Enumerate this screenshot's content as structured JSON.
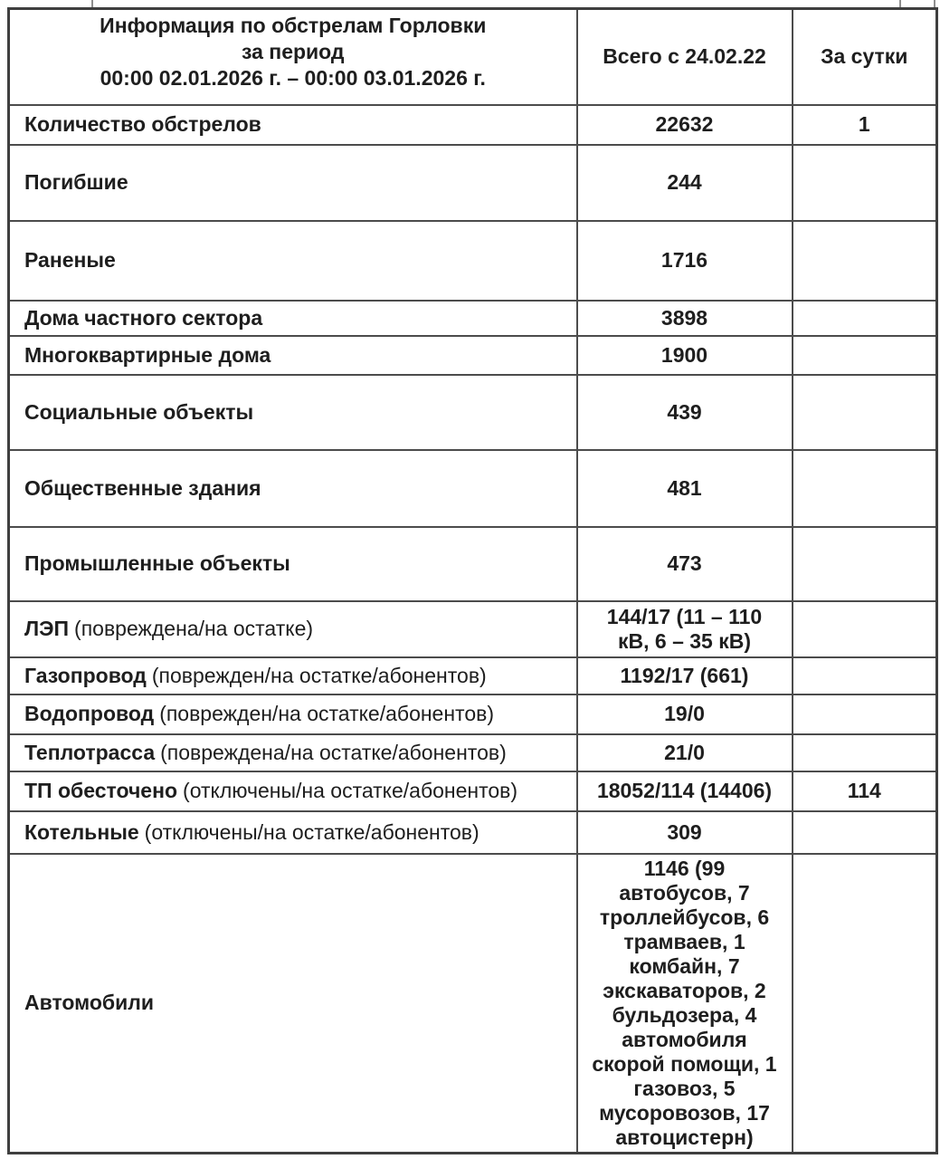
{
  "colors": {
    "background": "#ffffff",
    "border": "#4c4c4c",
    "text": "#1e1e1e"
  },
  "table": {
    "header": {
      "title": "Информация по обстрелам Горловки\nза период\n00:00 02.01.2026 г. – 00:00 03.01.2026 г.",
      "total_label": "Всего с 24.02.22",
      "daily_label": "За сутки"
    },
    "rows": [
      {
        "label": "Количество обстрелов",
        "note": "",
        "total": "22632",
        "daily": "1"
      },
      {
        "label": "Погибшие",
        "note": "",
        "total": "244",
        "daily": ""
      },
      {
        "label": "Раненые",
        "note": "",
        "total": "1716",
        "daily": ""
      },
      {
        "label": "Дома частного сектора",
        "note": "",
        "total": "3898",
        "daily": ""
      },
      {
        "label": "Многоквартирные дома",
        "note": "",
        "total": "1900",
        "daily": ""
      },
      {
        "label": "Социальные объекты",
        "note": "",
        "total": "439",
        "daily": ""
      },
      {
        "label": "Общественные здания",
        "note": "",
        "total": "481",
        "daily": ""
      },
      {
        "label": "Промышленные объекты",
        "note": "",
        "total": "473",
        "daily": ""
      },
      {
        "label": "ЛЭП",
        "note": "(повреждена/на остатке)",
        "total": "144/17 (11 – 110\nкВ, 6 – 35 кВ)",
        "daily": ""
      },
      {
        "label": "Газопровод",
        "note": "(поврежден/на остатке/абонентов)",
        "total": "1192/17 (661)",
        "daily": ""
      },
      {
        "label": "Водопровод",
        "note": "(поврежден/на остатке/абонентов)",
        "total": "19/0",
        "daily": ""
      },
      {
        "label": "Теплотрасса",
        "note": "(повреждена/на остатке/абонентов)",
        "total": "21/0",
        "daily": ""
      },
      {
        "label": "ТП обесточено",
        "note": "(отключены/на остатке/абонентов)",
        "total": "18052/114 (14406)",
        "daily": "114"
      },
      {
        "label": "Котельные",
        "note": "(отключены/на остатке/абонентов)",
        "total": "309",
        "daily": ""
      },
      {
        "label": "Автомобили",
        "note": "",
        "total": "1146 (99\nавтобусов, 7\nтроллейбусов, 6\nтрамваев, 1\nкомбайн, 7\nэкскаваторов, 2\nбульдозера, 4\nавтомобиля\nскорой помощи, 1\nгазовоз, 5\nмусоровозов, 17\nавтоцистерн)",
        "daily": ""
      }
    ]
  }
}
